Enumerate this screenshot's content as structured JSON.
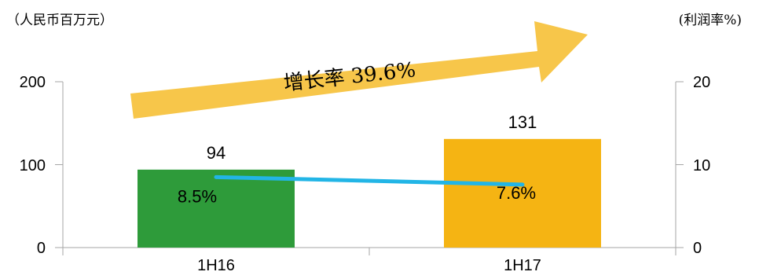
{
  "chart_data": {
    "type": "bar",
    "left_unit": "（人民币百万元）",
    "right_unit": "(利润率%)",
    "categories": [
      "1H16",
      "1H17"
    ],
    "series": [
      {
        "type": "bar",
        "axis": "left",
        "values": [
          94,
          131
        ],
        "colors": [
          "#2e9b3a",
          "#f5b413"
        ]
      },
      {
        "type": "line",
        "axis": "right",
        "values": [
          8.5,
          7.6
        ],
        "labels": [
          "8.5%",
          "7.6%"
        ],
        "color": "#22b5e6"
      }
    ],
    "left_axis": {
      "ylim": [
        0,
        200
      ],
      "ticks": [
        "0",
        "100",
        "200"
      ]
    },
    "right_axis": {
      "ylim": [
        0,
        20
      ],
      "ticks": [
        "0",
        "10",
        "20"
      ]
    },
    "annotation": {
      "text": "增长率 39.6%",
      "color": "#f7c64a"
    },
    "grid": false
  }
}
